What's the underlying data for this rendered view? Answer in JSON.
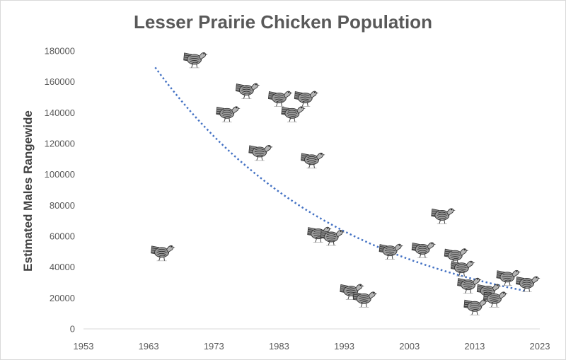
{
  "chart_data": {
    "type": "scatter",
    "title": "Lesser Prairie Chicken Population",
    "xlabel": "",
    "ylabel": "Estimated Males Rangewide",
    "xlim": [
      1953,
      2023
    ],
    "ylim": [
      0,
      180000
    ],
    "x_ticks": [
      "1953",
      "1963",
      "1973",
      "1983",
      "1993",
      "2003",
      "2013",
      "2023"
    ],
    "y_ticks": [
      "0",
      "20000",
      "40000",
      "60000",
      "80000",
      "100000",
      "120000",
      "140000",
      "160000",
      "180000"
    ],
    "grid": false,
    "legend": "none",
    "marker": "prairie-chicken-icon",
    "trendline": {
      "type": "exponential",
      "style": "dotted",
      "color": "#4472c4",
      "x_range": [
        1964,
        2021
      ]
    },
    "series": [
      {
        "points": [
          {
            "x": 1965,
            "y": 50000
          },
          {
            "x": 1970,
            "y": 175000
          },
          {
            "x": 1975,
            "y": 140000
          },
          {
            "x": 1978,
            "y": 155000
          },
          {
            "x": 1980,
            "y": 115000
          },
          {
            "x": 1983,
            "y": 150000
          },
          {
            "x": 1985,
            "y": 140000
          },
          {
            "x": 1987,
            "y": 150000
          },
          {
            "x": 1988,
            "y": 110000
          },
          {
            "x": 1989,
            "y": 62000
          },
          {
            "x": 1991,
            "y": 60000
          },
          {
            "x": 1994,
            "y": 25000
          },
          {
            "x": 1996,
            "y": 20000
          },
          {
            "x": 2000,
            "y": 51000
          },
          {
            "x": 2005,
            "y": 52000
          },
          {
            "x": 2008,
            "y": 74000
          },
          {
            "x": 2010,
            "y": 48000
          },
          {
            "x": 2011,
            "y": 40000
          },
          {
            "x": 2012,
            "y": 29000
          },
          {
            "x": 2013,
            "y": 15000
          },
          {
            "x": 2015,
            "y": 25000
          },
          {
            "x": 2016,
            "y": 20000
          },
          {
            "x": 2018,
            "y": 34000
          },
          {
            "x": 2021,
            "y": 30000
          }
        ]
      }
    ]
  }
}
